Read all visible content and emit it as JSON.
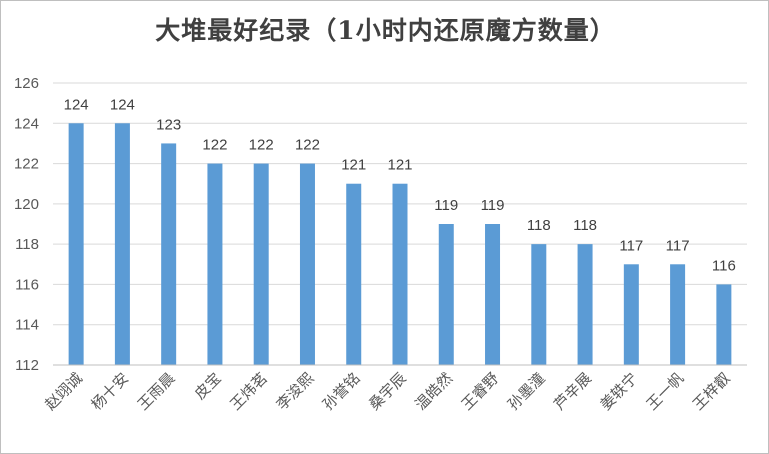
{
  "chart_data": {
    "type": "bar",
    "title": "大堆最好纪录（1小时内还原魔方数量）",
    "categories": [
      "赵翊诚",
      "杨十安",
      "王雨晨",
      "皮宝",
      "王炜茗",
      "李浚熙",
      "孙誉铭",
      "桑宇辰",
      "温皓然",
      "王睿野",
      "孙墨潼",
      "芦辛展",
      "姜轶宁",
      "王一帆",
      "王梓叡"
    ],
    "values": [
      124,
      124,
      123,
      122,
      122,
      122,
      121,
      121,
      119,
      119,
      118,
      118,
      117,
      117,
      116
    ],
    "ylim": [
      112,
      126
    ],
    "yticks": [
      112,
      114,
      116,
      118,
      120,
      122,
      124,
      126
    ],
    "grid": true,
    "bar_color": "#5b9bd5",
    "gridline_color": "#d9d9d9"
  }
}
